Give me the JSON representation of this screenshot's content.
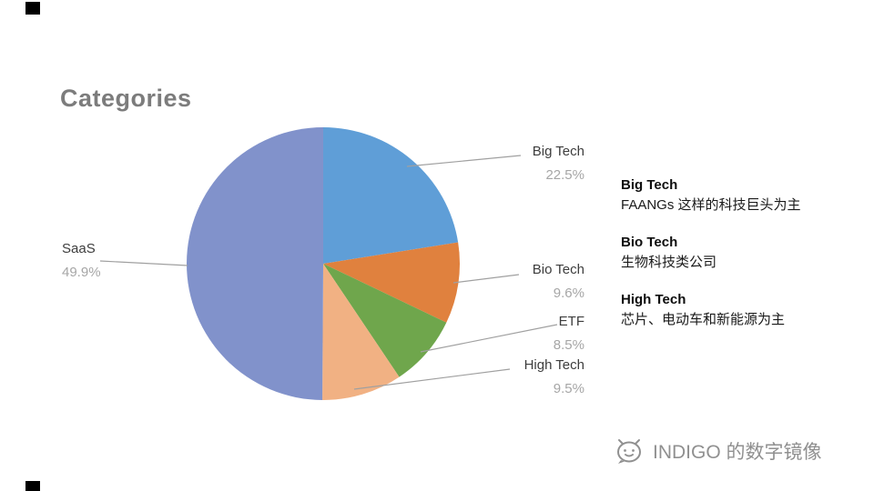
{
  "title": "Categories",
  "chart_data": {
    "type": "pie",
    "title": "Categories",
    "direction": "clockwise",
    "start_at": "top",
    "slices": [
      {
        "label": "Big Tech",
        "value": 22.5,
        "pct_label": "22.5%",
        "color": "#5f9ed7"
      },
      {
        "label": "Bio Tech",
        "value": 9.6,
        "pct_label": "9.6%",
        "color": "#e0813e"
      },
      {
        "label": "ETF",
        "value": 8.5,
        "pct_label": "8.5%",
        "color": "#6fa64c"
      },
      {
        "label": "High Tech",
        "value": 9.5,
        "pct_label": "9.5%",
        "color": "#f1b183"
      },
      {
        "label": "SaaS",
        "value": 49.9,
        "pct_label": "49.9%",
        "color": "#8192cb"
      }
    ],
    "label_text_color": "#3d3d3d",
    "pct_text_color": "#a6a6a6",
    "leader_line_color": "#a0a0a0"
  },
  "annotations": [
    {
      "name": "Big Tech",
      "desc": "FAANGs 这样的科技巨头为主"
    },
    {
      "name": "Bio Tech",
      "desc": "生物科技类公司"
    },
    {
      "name": "High Tech",
      "desc": "芯片、电动车和新能源为主"
    }
  ],
  "watermark": {
    "text": "INDIGO 的数字镜像"
  }
}
